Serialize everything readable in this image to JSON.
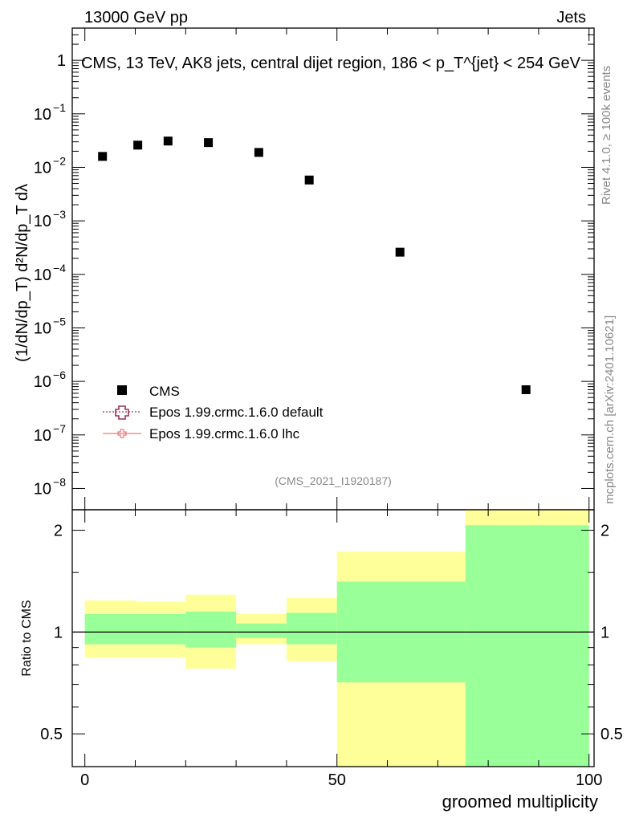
{
  "header": {
    "left": "13000 GeV pp",
    "right": "Jets"
  },
  "side": {
    "top": "Rivet 4.1.0, ≥ 100k events",
    "bottom": "mcplots.cern.ch [arXiv:2401.10621]"
  },
  "colors": {
    "yellow": "#ffff99",
    "green": "#99ff99",
    "data": "#000000",
    "epos_default": "#993355",
    "epos_lhc": "#ee7777"
  },
  "chart_data": [
    {
      "type": "scatter",
      "title": "CMS, 13 TeV, AK8 jets, central dijet region, 186 < p_T^{jet} < 254 GeV",
      "ylabel": "(1/dN/dp_T) d²N/dp_T dλ",
      "yscale": "log",
      "ylim": [
        4e-09,
        4
      ],
      "xlim": [
        -2.5,
        101
      ],
      "y_ticks": [
        {
          "v": 1e-08,
          "label": "10",
          "exp": "−8"
        },
        {
          "v": 1e-07,
          "label": "10",
          "exp": "−7"
        },
        {
          "v": 1e-06,
          "label": "10",
          "exp": "−6"
        },
        {
          "v": 1e-05,
          "label": "10",
          "exp": "−5"
        },
        {
          "v": 0.0001,
          "label": "10",
          "exp": "−4"
        },
        {
          "v": 0.001,
          "label": "10",
          "exp": "−3"
        },
        {
          "v": 0.01,
          "label": "10",
          "exp": "−2"
        },
        {
          "v": 0.1,
          "label": "10",
          "exp": "−1"
        },
        {
          "v": 1,
          "label": "1",
          "exp": ""
        }
      ],
      "series": [
        {
          "name": "CMS",
          "points": [
            {
              "x": 3.5,
              "y": 0.016
            },
            {
              "x": 10.5,
              "y": 0.026
            },
            {
              "x": 16.5,
              "y": 0.031
            },
            {
              "x": 24.5,
              "y": 0.029
            },
            {
              "x": 34.5,
              "y": 0.019
            },
            {
              "x": 44.5,
              "y": 0.0058
            },
            {
              "x": 62.5,
              "y": 0.00026
            },
            {
              "x": 87.5,
              "y": 7e-07
            }
          ]
        }
      ],
      "legend": [
        {
          "label": "CMS",
          "marker": "square"
        },
        {
          "label": "Epos 1.99.crmc.1.6.0 default",
          "marker": "open-cross"
        },
        {
          "label": "Epos 1.99.crmc.1.6.0 lhc",
          "marker": "small-cross"
        }
      ],
      "annotation": "(CMS_2021_I1920187)"
    },
    {
      "type": "area",
      "ylabel": "Ratio to CMS",
      "xlabel": "groomed multiplicity",
      "ylim": [
        0.4,
        2.3
      ],
      "xlim": [
        -2.5,
        101
      ],
      "reference_line": 1,
      "x_ticks": [
        {
          "v": 0,
          "label": "0"
        },
        {
          "v": 50,
          "label": "50"
        },
        {
          "v": 100,
          "label": "100"
        }
      ],
      "y_ticks": [
        {
          "v": 0.5,
          "label": "0.5"
        },
        {
          "v": 1,
          "label": "1"
        },
        {
          "v": 2,
          "label": "2"
        }
      ],
      "bands": [
        {
          "x0": 0,
          "x1": 10,
          "stat": [
            0.92,
            1.13
          ],
          "total": [
            0.84,
            1.24
          ]
        },
        {
          "x0": 10,
          "x1": 20,
          "stat": [
            0.92,
            1.13
          ],
          "total": [
            0.84,
            1.23
          ]
        },
        {
          "x0": 20,
          "x1": 30,
          "stat": [
            0.9,
            1.15
          ],
          "total": [
            0.78,
            1.29
          ]
        },
        {
          "x0": 30,
          "x1": 40,
          "stat": [
            0.96,
            1.06
          ],
          "total": [
            0.92,
            1.13
          ]
        },
        {
          "x0": 40,
          "x1": 50,
          "stat": [
            0.92,
            1.14
          ],
          "total": [
            0.82,
            1.26
          ]
        },
        {
          "x0": 50,
          "x1": 75.5,
          "stat": [
            0.71,
            1.41
          ],
          "total": [
            0.4,
            1.73
          ]
        },
        {
          "x0": 75.5,
          "x1": 100,
          "stat": [
            0.4,
            2.07
          ],
          "total": [
            0.4,
            2.3
          ]
        }
      ]
    }
  ]
}
